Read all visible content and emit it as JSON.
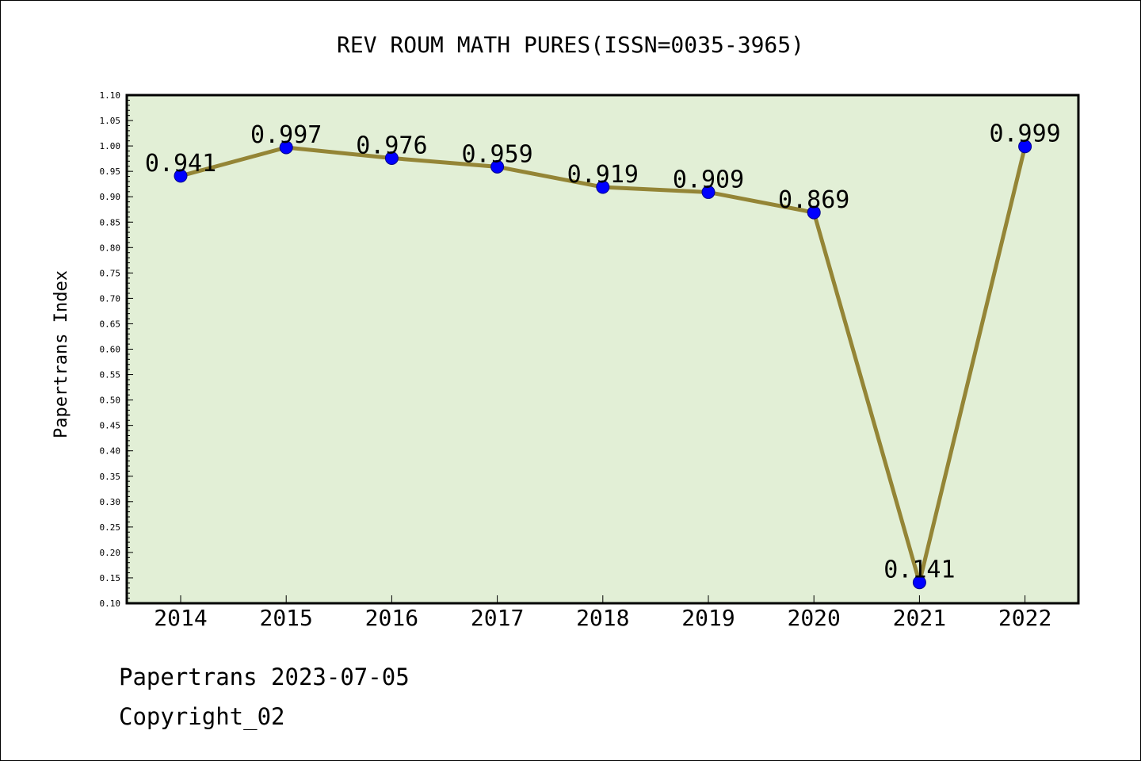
{
  "chart_data": {
    "type": "line",
    "title": "REV ROUM MATH PURES(ISSN=0035-3965)",
    "xlabel": "",
    "ylabel": "Papertrans Index",
    "categories": [
      "2014",
      "2015",
      "2016",
      "2017",
      "2018",
      "2019",
      "2020",
      "2021",
      "2022"
    ],
    "series": [
      {
        "values": [
          0.941,
          0.997,
          0.976,
          0.959,
          0.919,
          0.909,
          0.869,
          0.141,
          0.999
        ],
        "labels": [
          "0.941",
          "0.997",
          "0.976",
          "0.959",
          "0.919",
          "0.909",
          "0.869",
          "0.141",
          "0.999"
        ]
      }
    ],
    "ylim": [
      0.1,
      1.1
    ],
    "yticks": [
      "0.10",
      "0.15",
      "0.20",
      "0.25",
      "0.30",
      "0.35",
      "0.40",
      "0.45",
      "0.50",
      "0.55",
      "0.60",
      "0.65",
      "0.70",
      "0.75",
      "0.80",
      "0.85",
      "0.90",
      "0.95",
      "1.00",
      "1.05",
      "1.10"
    ],
    "grid": false,
    "colors": {
      "plot_background": "#e2efd6",
      "line": "#948536",
      "marker": "#0000ff",
      "frame": "#000000"
    }
  },
  "footer": {
    "line1": "Papertrans 2023-07-05",
    "line2": "Copyright_02"
  }
}
